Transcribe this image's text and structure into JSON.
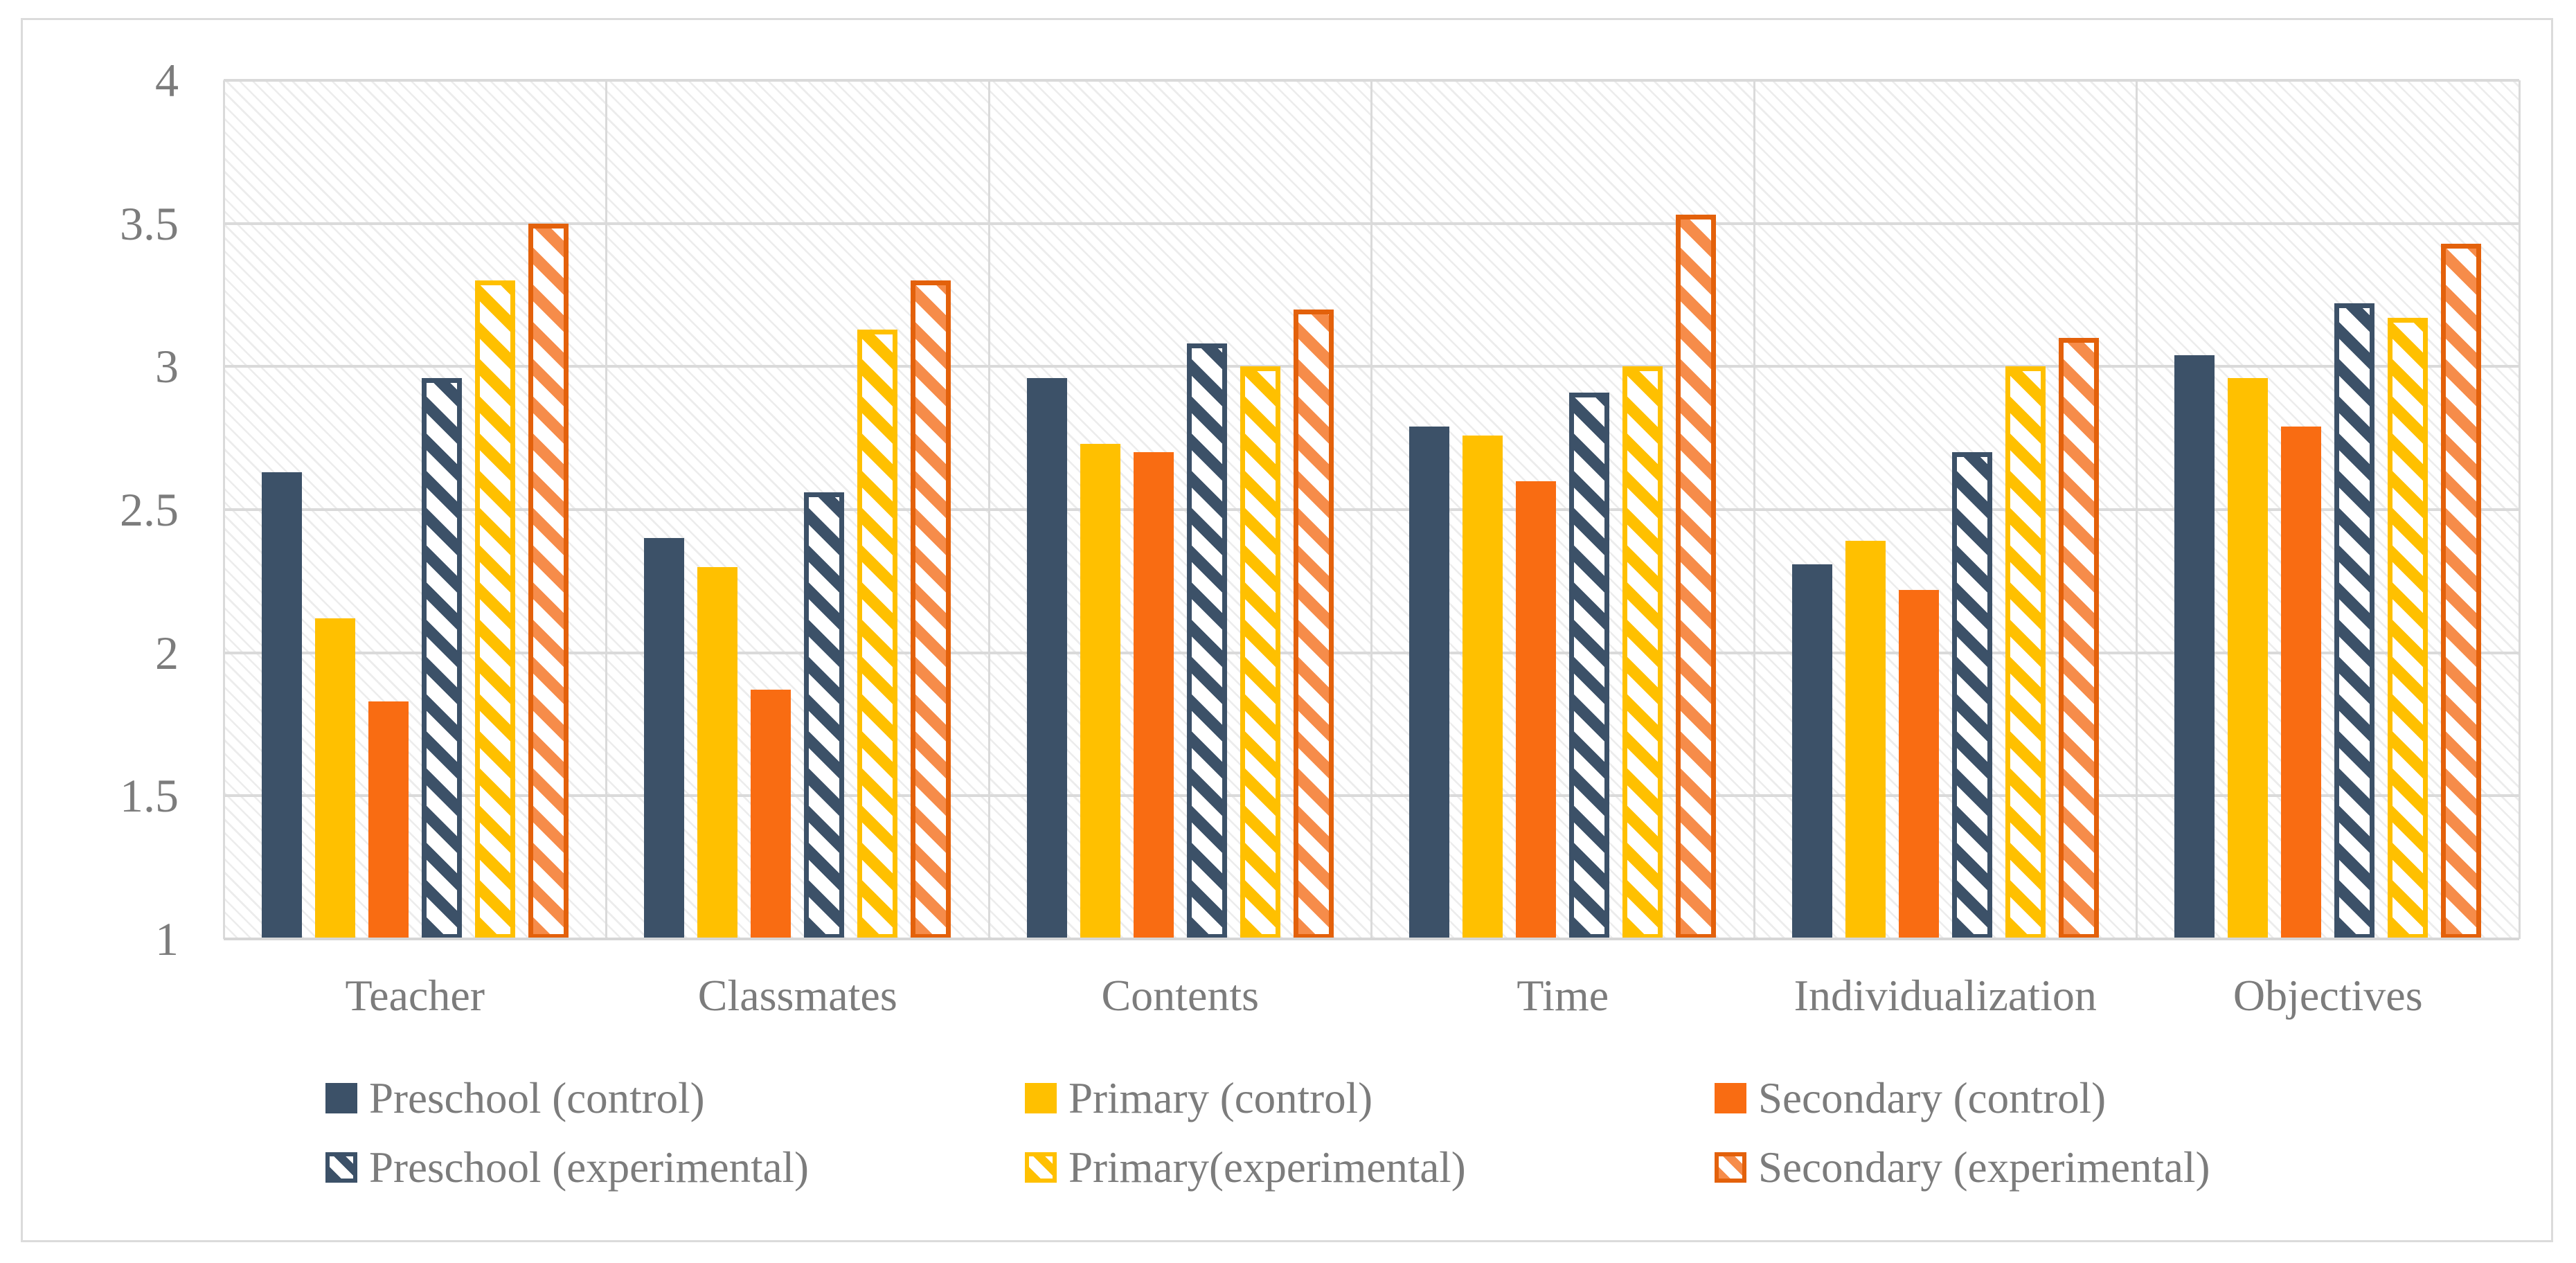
{
  "figure": {
    "description": "Grouped bar chart comparing control vs experimental groups across six dimensions",
    "plot_background_pattern": "light diagonal hatch"
  },
  "chart_data": {
    "type": "bar",
    "title": "",
    "xlabel": "",
    "ylabel": "",
    "categories": [
      "Teacher",
      "Classmates",
      "Contents",
      "Time",
      "Individualization",
      "Objectives"
    ],
    "series": [
      {
        "name": "Preschool (control)",
        "pattern": "solid",
        "color": "#3C5168",
        "stripe_color": "#3C5168",
        "values": [
          2.63,
          2.4,
          2.96,
          2.79,
          2.31,
          3.04
        ]
      },
      {
        "name": "Primary (control)",
        "pattern": "solid",
        "color": "#FFC000",
        "stripe_color": "#FFC000",
        "values": [
          2.12,
          2.3,
          2.73,
          2.76,
          2.39,
          2.96
        ]
      },
      {
        "name": "Secondary (control)",
        "pattern": "solid",
        "color": "#F96C12",
        "stripe_color": "#F96C12",
        "values": [
          1.83,
          1.87,
          2.7,
          2.6,
          2.22,
          2.79
        ]
      },
      {
        "name": "Preschool (experimental)",
        "pattern": "diagonal-stripe",
        "color": "#3C5168",
        "stripe_color": "#3C5168",
        "values": [
          2.96,
          2.56,
          3.08,
          2.91,
          2.7,
          3.22
        ]
      },
      {
        "name": "Primary(experimental)",
        "pattern": "diagonal-stripe",
        "color": "#FFC000",
        "stripe_color": "#FFC000",
        "values": [
          3.3,
          3.13,
          3.0,
          3.0,
          3.0,
          3.17
        ]
      },
      {
        "name": "Secondary (experimental)",
        "pattern": "diagonal-stripe",
        "color": "#E3610B",
        "stripe_color": "#F68C4A",
        "values": [
          3.5,
          3.3,
          3.2,
          3.53,
          3.1,
          3.43
        ]
      }
    ],
    "ylim": [
      1,
      4
    ],
    "yticks": [
      "4",
      "3.5",
      "3",
      "2.5",
      "2",
      "1.5",
      "1"
    ],
    "grid": true,
    "legend_position": "bottom",
    "legend_rows": 2,
    "legend_columns": 3
  },
  "style_colors": {
    "gridline": "#DADADA",
    "frame_border": "#DBDBDB",
    "axis_text": "#7C7C7C",
    "solid_navy": "#3C5168",
    "solid_yellow": "#FFC000",
    "solid_orange": "#F96C12",
    "hatch_orange_border": "#E3610B",
    "hatch_orange_stripe": "#F68C4A"
  }
}
